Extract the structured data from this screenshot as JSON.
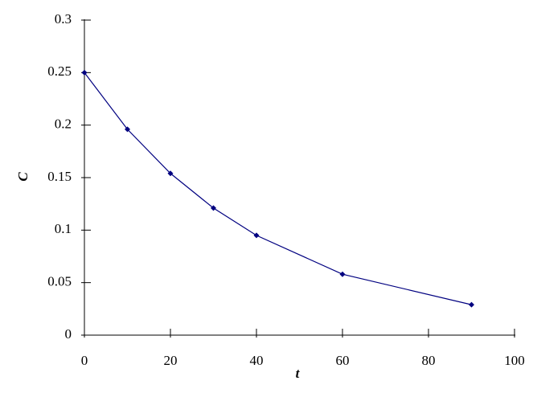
{
  "chart_data": {
    "type": "line",
    "x_label": "t",
    "y_label": "C",
    "x": [
      0,
      10,
      20,
      30,
      40,
      60,
      90
    ],
    "series": [
      {
        "color": "#000080",
        "values": [
          0.25,
          0.196,
          0.154,
          0.121,
          0.095,
          0.058,
          0.029
        ]
      }
    ],
    "xlim": [
      0,
      100
    ],
    "xticks": [
      0,
      20,
      40,
      60,
      80,
      100
    ],
    "ylim": [
      0,
      0.3
    ],
    "yticks": [
      0,
      0.05,
      0.1,
      0.15,
      0.2,
      0.25,
      0.3
    ],
    "grid": false
  }
}
